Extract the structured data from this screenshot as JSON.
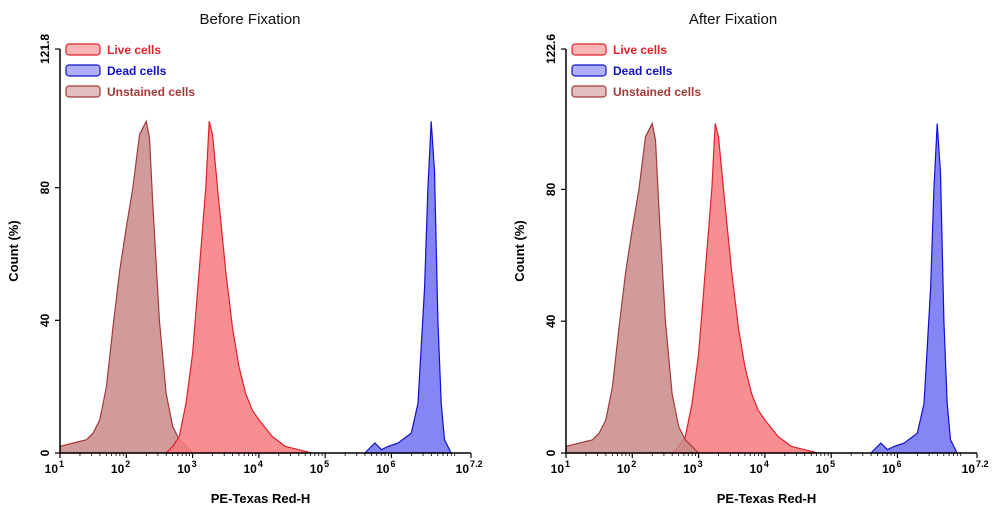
{
  "chart_data": [
    {
      "type": "area",
      "title": "Before Fixation",
      "xlabel": "PE-Texas Red-H",
      "ylabel": "Count  (%)",
      "xscale": "log",
      "xlim_log10": [
        1,
        7.2
      ],
      "ylim": [
        0,
        121.8
      ],
      "x_ticks": [
        {
          "base": "10",
          "exp": "1"
        },
        {
          "base": "10",
          "exp": "2"
        },
        {
          "base": "10",
          "exp": "3"
        },
        {
          "base": "10",
          "exp": "4"
        },
        {
          "base": "10",
          "exp": "5"
        },
        {
          "base": "10",
          "exp": "6"
        },
        {
          "base": "10",
          "exp": "7.2"
        }
      ],
      "y_ticks": [
        "0",
        "40",
        "80",
        "121.8"
      ],
      "legend_position": "top-left",
      "series": [
        {
          "name": "Unstained cells",
          "color": "#a33a3a",
          "fill": "#c98a8a",
          "log10_x": [
            1.0,
            1.2,
            1.4,
            1.5,
            1.6,
            1.7,
            1.8,
            1.9,
            2.0,
            2.1,
            2.2,
            2.3,
            2.35,
            2.4,
            2.5,
            2.6,
            2.7,
            2.8,
            2.9,
            3.0
          ],
          "y": [
            2,
            3,
            4,
            6,
            10,
            20,
            38,
            55,
            68,
            80,
            96,
            100,
            95,
            75,
            40,
            18,
            8,
            4,
            2,
            0
          ]
        },
        {
          "name": "Live cells",
          "color": "#e0202a",
          "fill": "#f77a7e",
          "log10_x": [
            2.6,
            2.7,
            2.8,
            2.9,
            3.0,
            3.1,
            3.2,
            3.25,
            3.3,
            3.4,
            3.5,
            3.6,
            3.7,
            3.8,
            3.9,
            4.0,
            4.2,
            4.4,
            4.6,
            4.8
          ],
          "y": [
            0,
            2,
            5,
            15,
            30,
            55,
            80,
            100,
            96,
            75,
            55,
            38,
            26,
            18,
            13,
            10,
            5,
            2,
            1,
            0
          ]
        },
        {
          "name": "Dead cells",
          "color": "#1010cc",
          "fill": "#7070f5",
          "log10_x": [
            5.6,
            5.75,
            5.85,
            5.95,
            6.1,
            6.3,
            6.4,
            6.5,
            6.55,
            6.6,
            6.65,
            6.7,
            6.75,
            6.8,
            6.9
          ],
          "y": [
            0,
            3,
            1,
            2,
            3,
            6,
            15,
            50,
            80,
            100,
            85,
            40,
            15,
            4,
            0
          ]
        }
      ]
    },
    {
      "type": "area",
      "title": "After Fixation",
      "xlabel": "PE-Texas Red-H",
      "ylabel": "Count  (%)",
      "xscale": "log",
      "xlim_log10": [
        1,
        7.2
      ],
      "ylim": [
        0,
        122.6
      ],
      "x_ticks": [
        {
          "base": "10",
          "exp": "1"
        },
        {
          "base": "10",
          "exp": "2"
        },
        {
          "base": "10",
          "exp": "3"
        },
        {
          "base": "10",
          "exp": "4"
        },
        {
          "base": "10",
          "exp": "5"
        },
        {
          "base": "10",
          "exp": "6"
        },
        {
          "base": "10",
          "exp": "7.2"
        }
      ],
      "y_ticks": [
        "0",
        "40",
        "80",
        "122.6"
      ],
      "legend_position": "top-left",
      "series": [
        {
          "name": "Live cells",
          "color": "#e0202a",
          "fill": "#f77a7e",
          "log10_x": [
            2.6,
            2.7,
            2.8,
            2.9,
            3.0,
            3.1,
            3.2,
            3.25,
            3.3,
            3.4,
            3.5,
            3.6,
            3.7,
            3.8,
            3.9,
            4.0,
            4.2,
            4.4,
            4.6,
            4.8
          ],
          "y": [
            0,
            2,
            5,
            15,
            30,
            55,
            80,
            100,
            96,
            75,
            55,
            38,
            26,
            18,
            13,
            10,
            5,
            2,
            1,
            0
          ]
        },
        {
          "name": "Dead cells",
          "color": "#1010cc",
          "fill": "#7070f5",
          "log10_x": [
            5.6,
            5.75,
            5.85,
            5.95,
            6.1,
            6.3,
            6.4,
            6.5,
            6.55,
            6.6,
            6.65,
            6.7,
            6.75,
            6.8,
            6.9
          ],
          "y": [
            0,
            3,
            1,
            2,
            3,
            6,
            15,
            50,
            80,
            100,
            85,
            40,
            15,
            4,
            0
          ]
        },
        {
          "name": "Unstained cells",
          "color": "#a33a3a",
          "fill": "#c98a8a",
          "log10_x": [
            1.0,
            1.2,
            1.4,
            1.5,
            1.6,
            1.7,
            1.8,
            1.9,
            2.0,
            2.1,
            2.2,
            2.3,
            2.35,
            2.4,
            2.5,
            2.6,
            2.7,
            2.8,
            2.9,
            3.0
          ],
          "y": [
            2,
            3,
            4,
            6,
            10,
            20,
            38,
            55,
            68,
            80,
            96,
            100,
            95,
            75,
            40,
            18,
            8,
            4,
            2,
            0
          ]
        }
      ]
    }
  ]
}
